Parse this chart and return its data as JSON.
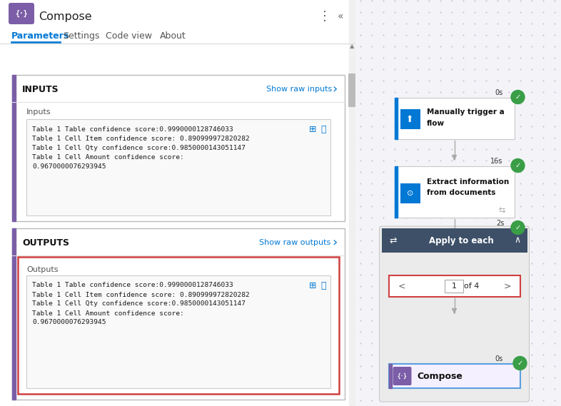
{
  "bg_color": "#ffffff",
  "left_panel_bg": "#ffffff",
  "right_bg": "#f0f0f5",
  "title": "Compose",
  "title_icon_color": "#7b5ea7",
  "tabs": [
    "Parameters",
    "Settings",
    "Code view",
    "About"
  ],
  "inputs_label": "INPUTS",
  "inputs_show_raw": "Show raw inputs",
  "outputs_label": "OUTPUTS",
  "outputs_show_raw": "Show raw outputs",
  "inputs_sublabel": "Inputs",
  "outputs_sublabel": "Outputs",
  "content_lines": [
    "Table 1 Table confidence score:0.9990000128746033",
    "Table 1 Cell Item confidence score: 0.890999972820282",
    "Table 1 Cell Qty confidence score:0.9850000143051147",
    "Table 1 Cell Amount confidence score:",
    "0.9670000076293945"
  ],
  "inputs_accent_color": "#7b5ea7",
  "outputs_accent_color": "#7b5ea7",
  "blue_accent": "#0078d4",
  "green_check": "#3a9e47",
  "arrow_color": "#aaaaaa",
  "dot_color": "#c8c8d8",
  "outputs_border_red": "#d04040",
  "compose_border_blue": "#5aa0e0",
  "compose_bg": "#f5f0ff",
  "apply_each_bg": "#3d5068",
  "scrollbar_color": "#c0c0c0"
}
